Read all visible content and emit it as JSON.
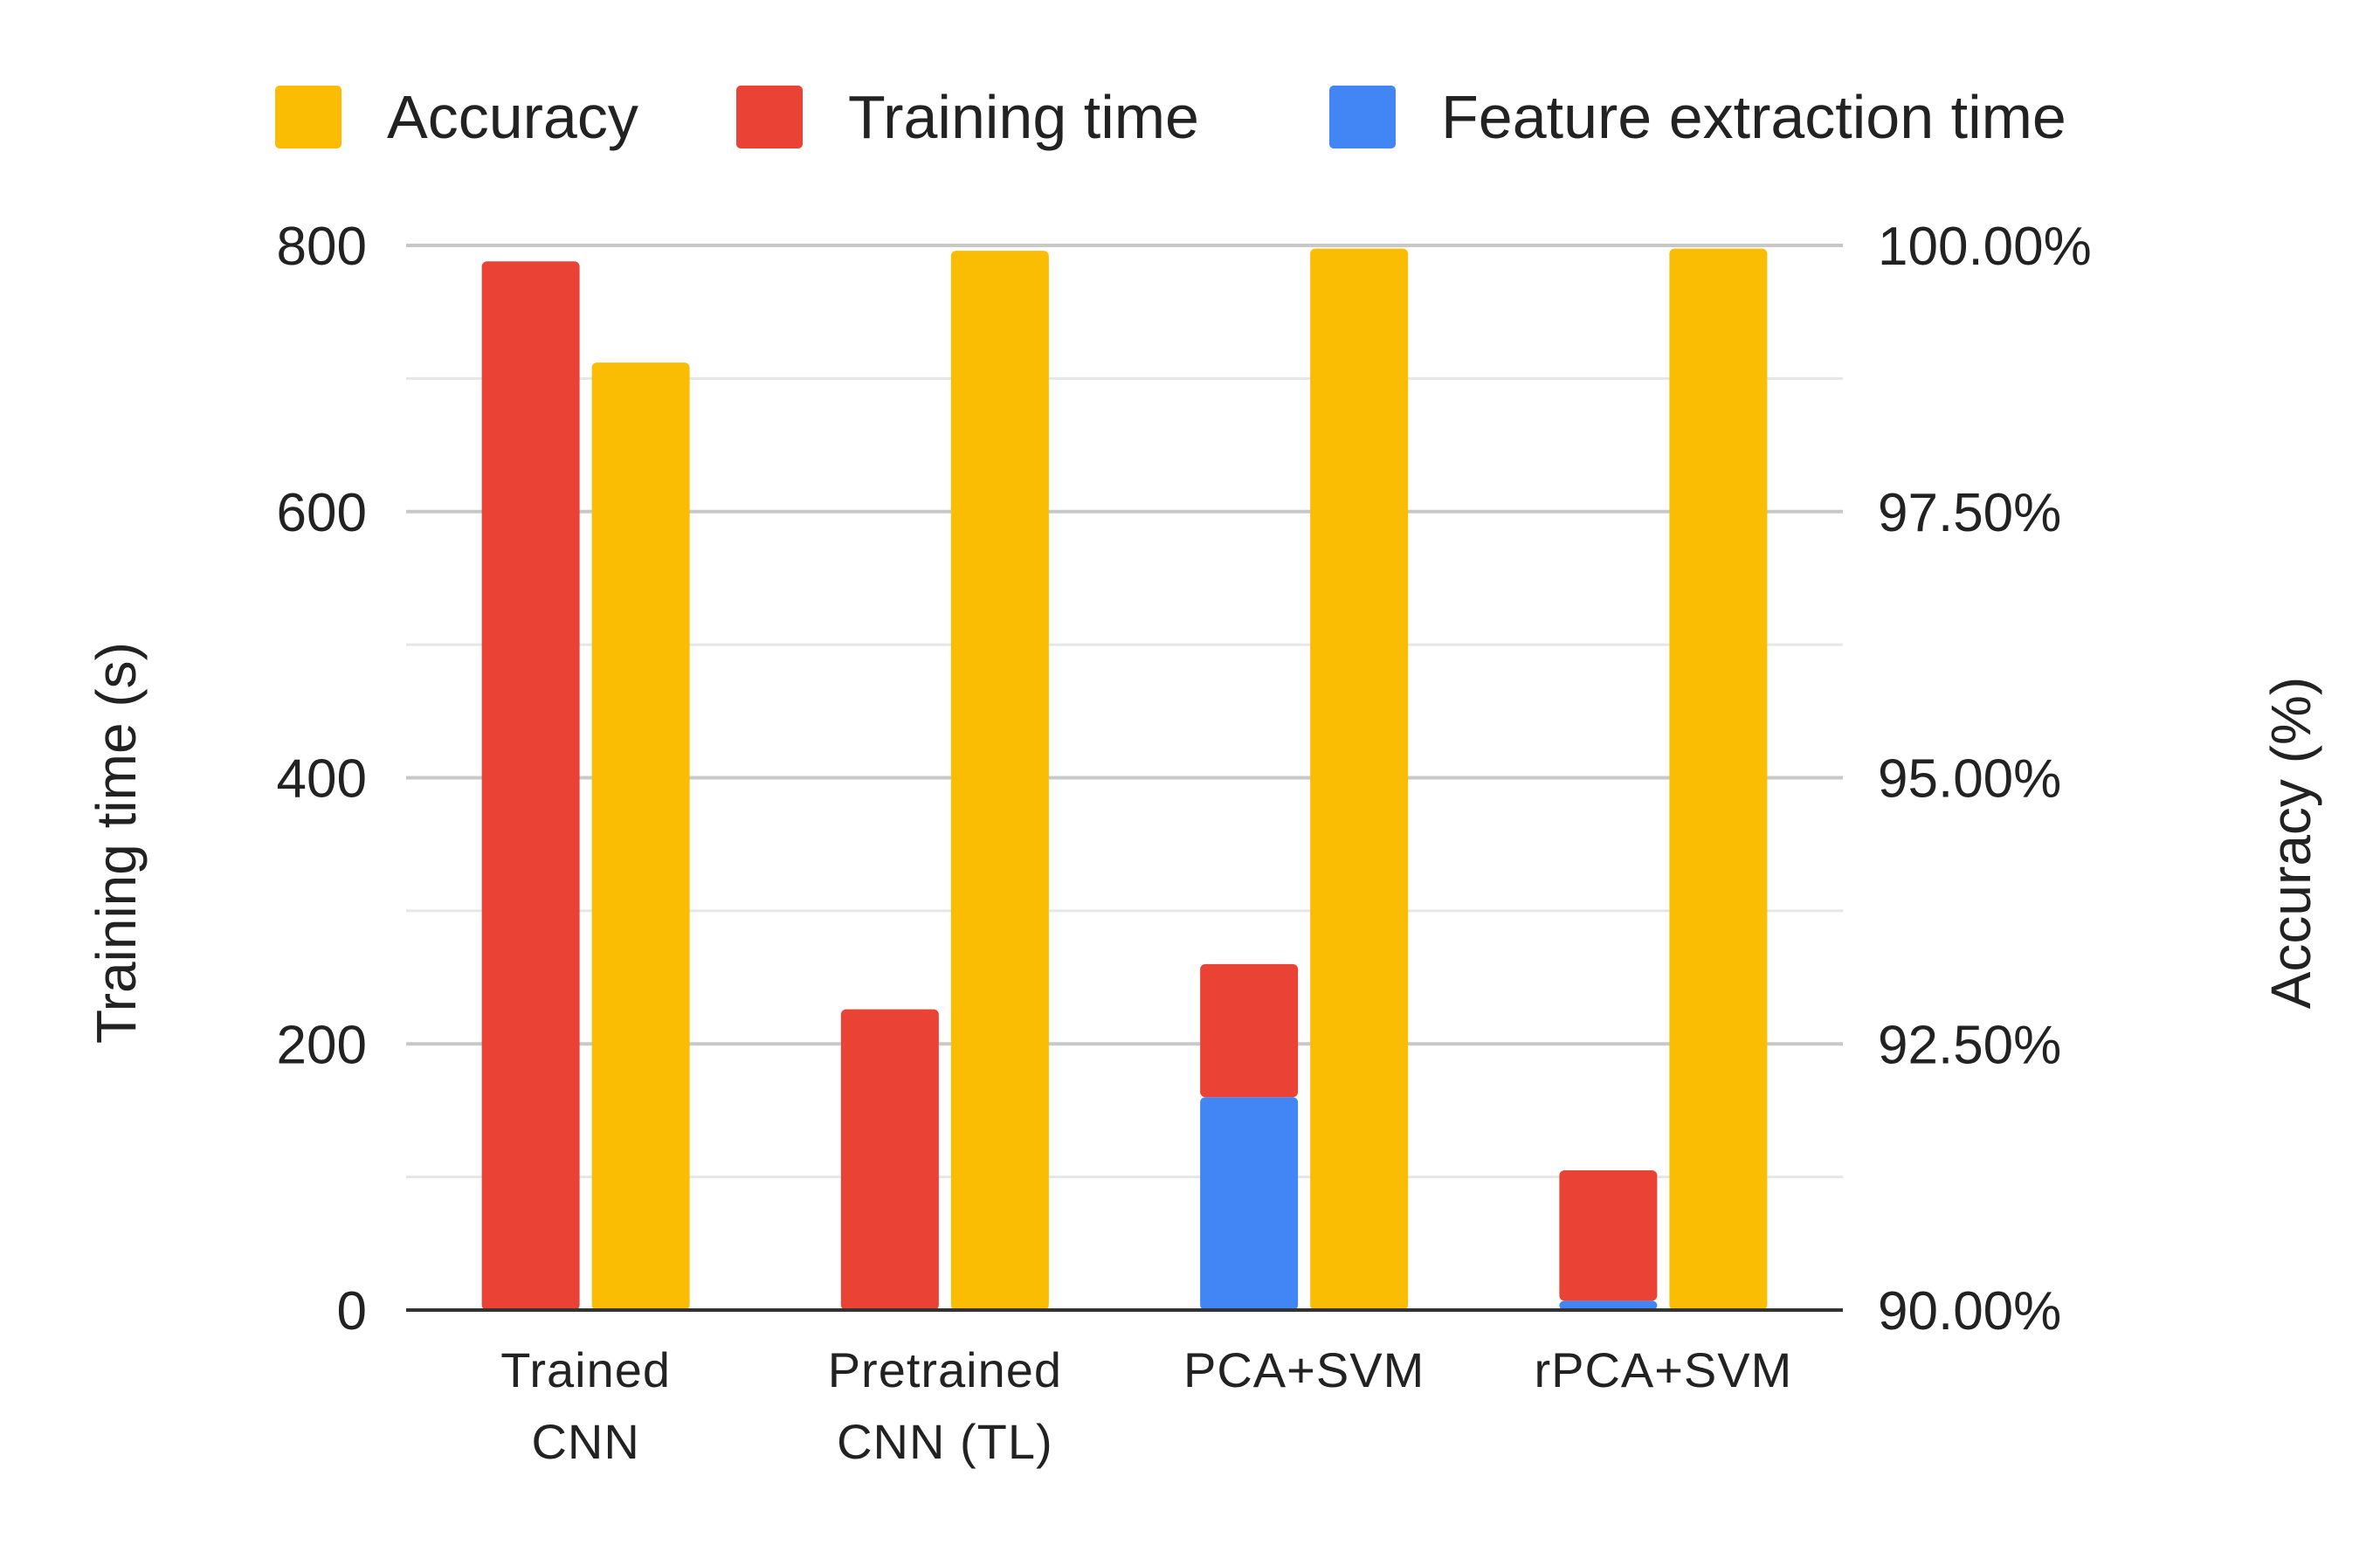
{
  "chart_data": {
    "type": "bar",
    "categories": [
      [
        "Trained",
        "CNN"
      ],
      [
        "Pretrained",
        "CNN (TL)"
      ],
      [
        "PCA+SVM"
      ],
      [
        "rPCA+SVM"
      ]
    ],
    "legend": {
      "placement": "top",
      "items": [
        {
          "name": "Accuracy",
          "color": "#FBBC04"
        },
        {
          "name": "Training time",
          "color": "#EA4335"
        },
        {
          "name": "Feature extraction time",
          "color": "#4285F4"
        }
      ]
    },
    "series": [
      {
        "name": "Feature extraction time",
        "axis": "left",
        "stack": "time",
        "color": "#4285F4",
        "values": [
          0,
          0,
          160,
          7
        ]
      },
      {
        "name": "Training time",
        "axis": "left",
        "stack": "time",
        "color": "#EA4335",
        "values": [
          788,
          226,
          100,
          98
        ]
      },
      {
        "name": "Accuracy",
        "axis": "right",
        "color": "#FBBC04",
        "values": [
          98.9,
          99.95,
          99.97,
          99.97
        ]
      }
    ],
    "ylabel": "Training time (s)",
    "ylim": [
      0,
      800
    ],
    "yticks": [
      "0",
      "200",
      "400",
      "600",
      "800"
    ],
    "y2label": "Accuracy (%)",
    "y2lim": [
      90,
      100
    ],
    "y2ticks": [
      "90.00%",
      "92.50%",
      "95.00%",
      "97.50%",
      "100.00%"
    ],
    "grid": true
  }
}
